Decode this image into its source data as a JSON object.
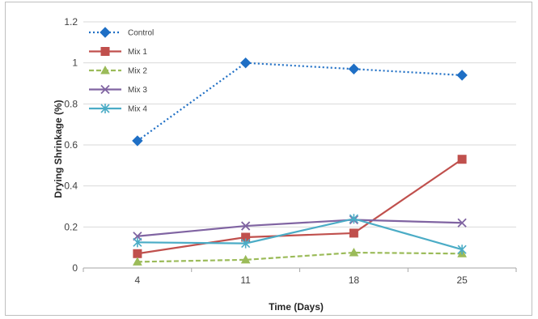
{
  "chart_data": {
    "type": "line",
    "title": "",
    "xlabel": "Time (Days)",
    "ylabel": "Drying Shrinkage (%)",
    "categories": [
      "4",
      "11",
      "18",
      "25"
    ],
    "ylim": [
      0,
      1.2
    ],
    "yticks": [
      "0",
      "0.2",
      "0.4",
      "0.6",
      "0.8",
      "1",
      "1.2"
    ],
    "grid": "horizontal",
    "legend_position": "top-left",
    "series": [
      {
        "name": "Control",
        "values": [
          0.62,
          1.0,
          0.97,
          0.94
        ],
        "color": "#1f6fc5",
        "dash": "dotted",
        "marker": "diamond"
      },
      {
        "name": "Mix 1",
        "values": [
          0.07,
          0.15,
          0.17,
          0.53
        ],
        "color": "#c0504d",
        "dash": "solid",
        "marker": "square"
      },
      {
        "name": "Mix 2",
        "values": [
          0.03,
          0.04,
          0.075,
          0.07
        ],
        "color": "#9bbb59",
        "dash": "dashed",
        "marker": "triangle"
      },
      {
        "name": "Mix 3",
        "values": [
          0.155,
          0.205,
          0.235,
          0.22
        ],
        "color": "#8064a2",
        "dash": "solid",
        "marker": "x"
      },
      {
        "name": "Mix 4",
        "values": [
          0.125,
          0.12,
          0.24,
          0.09
        ],
        "color": "#4bacc6",
        "dash": "solid",
        "marker": "star"
      }
    ]
  }
}
